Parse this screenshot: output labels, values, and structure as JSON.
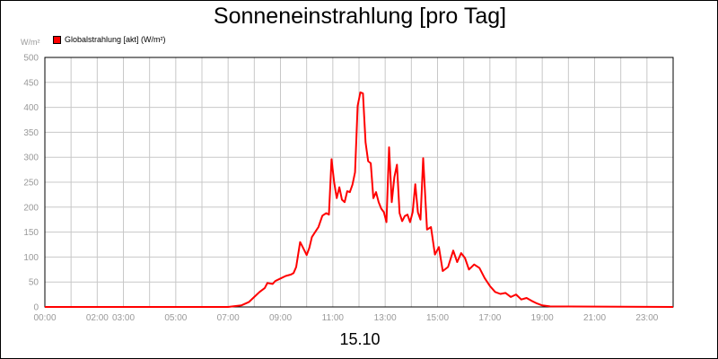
{
  "chart_data": {
    "type": "line",
    "title": "Sonneneinstrahlung [pro Tag]",
    "ylabel": "W/m²",
    "xlabel": "15.10",
    "grid": true,
    "legend": "top-left",
    "ylim": [
      0,
      500
    ],
    "xlim": [
      0,
      24
    ],
    "yticks": [
      0,
      50,
      100,
      150,
      200,
      250,
      300,
      350,
      400,
      450,
      500
    ],
    "xticks": [
      {
        "h": 0,
        "label": "00:00"
      },
      {
        "h": 2,
        "label": "02:00"
      },
      {
        "h": 3,
        "label": "03:00"
      },
      {
        "h": 5,
        "label": "05:00"
      },
      {
        "h": 7,
        "label": "07:00"
      },
      {
        "h": 9,
        "label": "09:00"
      },
      {
        "h": 11,
        "label": "11:00"
      },
      {
        "h": 13,
        "label": "13:00"
      },
      {
        "h": 15,
        "label": "15:00"
      },
      {
        "h": 17,
        "label": "17:00"
      },
      {
        "h": 19,
        "label": "19:00"
      },
      {
        "h": 21,
        "label": "21:00"
      },
      {
        "h": 23,
        "label": "23:00"
      }
    ],
    "series": [
      {
        "name": "Globalstrahlung [akt] (W/m²)",
        "color": "#ff0000",
        "x": [
          0,
          7.0,
          7.5,
          7.8,
          8.0,
          8.2,
          8.4,
          8.5,
          8.7,
          8.8,
          9.0,
          9.2,
          9.4,
          9.5,
          9.6,
          9.75,
          9.85,
          10.0,
          10.1,
          10.2,
          10.3,
          10.45,
          10.6,
          10.75,
          10.85,
          10.95,
          11.05,
          11.15,
          11.25,
          11.35,
          11.45,
          11.55,
          11.65,
          11.75,
          11.85,
          11.95,
          12.05,
          12.15,
          12.25,
          12.35,
          12.45,
          12.55,
          12.65,
          12.75,
          12.85,
          12.95,
          13.05,
          13.15,
          13.25,
          13.35,
          13.45,
          13.55,
          13.65,
          13.75,
          13.85,
          13.95,
          14.05,
          14.15,
          14.25,
          14.35,
          14.45,
          14.6,
          14.75,
          14.9,
          15.05,
          15.2,
          15.4,
          15.6,
          15.75,
          15.9,
          16.05,
          16.2,
          16.4,
          16.6,
          16.8,
          17.0,
          17.2,
          17.4,
          17.6,
          17.8,
          18.0,
          18.2,
          18.4,
          18.6,
          18.8,
          19.0,
          19.3,
          24
        ],
        "y": [
          0,
          0,
          3,
          10,
          20,
          30,
          38,
          48,
          46,
          52,
          57,
          62,
          65,
          68,
          80,
          130,
          120,
          104,
          118,
          140,
          148,
          160,
          183,
          188,
          185,
          296,
          250,
          218,
          240,
          215,
          210,
          232,
          230,
          245,
          270,
          403,
          430,
          428,
          330,
          292,
          288,
          218,
          230,
          210,
          197,
          190,
          170,
          320,
          210,
          260,
          285,
          188,
          172,
          182,
          185,
          170,
          190,
          246,
          190,
          175,
          298,
          155,
          160,
          105,
          120,
          72,
          80,
          113,
          90,
          108,
          98,
          75,
          85,
          78,
          58,
          42,
          30,
          26,
          28,
          20,
          25,
          15,
          18,
          12,
          7,
          3,
          1,
          0
        ]
      }
    ]
  }
}
